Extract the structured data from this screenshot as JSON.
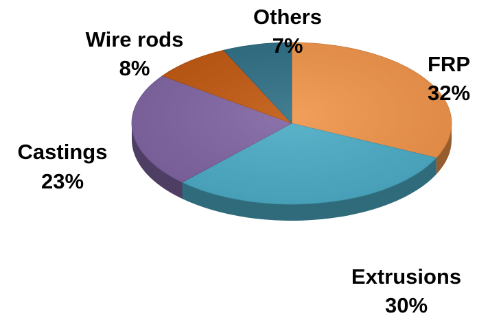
{
  "chart_data": {
    "type": "pie",
    "title": "",
    "categories": [
      "FRP",
      "Extrusions",
      "Castings",
      "Wire rods",
      "Others"
    ],
    "values": [
      32,
      30,
      23,
      8,
      7
    ],
    "value_labels": [
      "32%",
      "30%",
      "23%",
      "8%",
      "7%"
    ],
    "colors": [
      "#F0944A",
      "#4BACC6",
      "#8064A2",
      "#C0570F",
      "#2D6E84"
    ],
    "style": "3d-tilted",
    "legend": "none",
    "grid": false
  }
}
